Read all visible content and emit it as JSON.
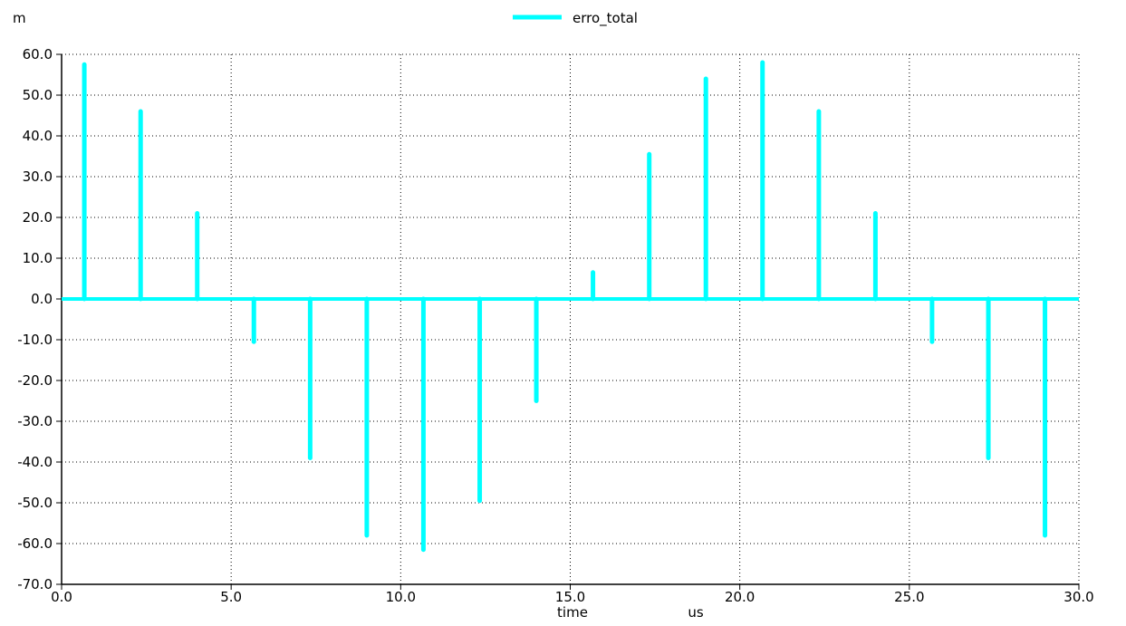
{
  "chart_data": {
    "type": "line",
    "title": "",
    "legend": {
      "placement": "top-center",
      "entries": [
        "erro_total"
      ]
    },
    "xlabel": "time",
    "xunit": "us",
    "yunit": "m",
    "xlim": [
      0.0,
      30.0
    ],
    "ylim": [
      -70.0,
      60.0
    ],
    "grid": true,
    "x_ticks": [
      0,
      5,
      10,
      15,
      20,
      25,
      30
    ],
    "x_tick_labels": [
      "0.0",
      "5.0",
      "10.0",
      "15.0",
      "20.0",
      "25.0",
      "30.0"
    ],
    "y_ticks": [
      60,
      50,
      40,
      30,
      20,
      10,
      0,
      -10,
      -20,
      -30,
      -40,
      -50,
      -60,
      -70
    ],
    "y_tick_labels": [
      "60.0",
      "50.0",
      "40.0",
      "30.0",
      "20.0",
      "10.0",
      "0.0",
      "-10.0",
      "-20.0",
      "-30.0",
      "-40.0",
      "-50.0",
      "-60.0",
      "-70.0"
    ],
    "series": [
      {
        "name": "erro_total",
        "color": "#00ffff",
        "baseline": 0.0,
        "spikes": [
          {
            "x": 0.67,
            "y": 57.5
          },
          {
            "x": 2.33,
            "y": 46.0
          },
          {
            "x": 4.0,
            "y": 21.0
          },
          {
            "x": 5.67,
            "y": -10.5
          },
          {
            "x": 7.33,
            "y": -39.0
          },
          {
            "x": 9.0,
            "y": -58.0
          },
          {
            "x": 10.67,
            "y": -61.5
          },
          {
            "x": 12.33,
            "y": -49.5
          },
          {
            "x": 14.0,
            "y": -25.0
          },
          {
            "x": 15.67,
            "y": 6.5
          },
          {
            "x": 17.33,
            "y": 35.5
          },
          {
            "x": 19.0,
            "y": 54.0
          },
          {
            "x": 20.67,
            "y": 58.0
          },
          {
            "x": 22.33,
            "y": 46.0
          },
          {
            "x": 24.0,
            "y": 21.0
          },
          {
            "x": 25.67,
            "y": -10.5
          },
          {
            "x": 27.33,
            "y": -39.0
          },
          {
            "x": 29.0,
            "y": -58.0
          }
        ]
      }
    ]
  }
}
